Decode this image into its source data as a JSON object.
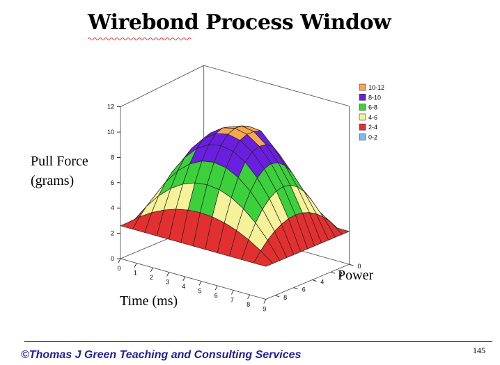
{
  "title": "Wirebond  Process Window",
  "footer": "©Thomas J Green Teaching and Consulting Services",
  "page_number": "145",
  "chart_data": {
    "type": "surface",
    "title": "Wirebond  Process Window",
    "zlabel": [
      "Pull Force",
      "(grams)"
    ],
    "xlabel": "Time (ms)",
    "ylabel": "Power",
    "x_ticks": [
      "0",
      "1",
      "2",
      "3",
      "4",
      "5",
      "6",
      "7",
      "8",
      "9"
    ],
    "y_ticks": [
      "0",
      "2",
      "4",
      "6",
      "8"
    ],
    "z_ticks": [
      "0",
      "2",
      "4",
      "6",
      "8",
      "10",
      "12"
    ],
    "xlim": [
      0,
      9
    ],
    "ylim": [
      0,
      9
    ],
    "zlim": [
      0,
      12
    ],
    "grid": true,
    "legend_position": "right",
    "legend": [
      {
        "label": "10-12",
        "color": "#f5a850"
      },
      {
        "label": "8-10",
        "color": "#6a1fe0"
      },
      {
        "label": "6-8",
        "color": "#3cd03c"
      },
      {
        "label": "4-6",
        "color": "#f6f29a"
      },
      {
        "label": "2-4",
        "color": "#e23030"
      },
      {
        "label": "0-2",
        "color": "#7fb7ee"
      }
    ],
    "surface": {
      "peak_time": 4.5,
      "peak_power": 4.5,
      "peak_force": 10.5,
      "corner_force": 2.6
    }
  }
}
